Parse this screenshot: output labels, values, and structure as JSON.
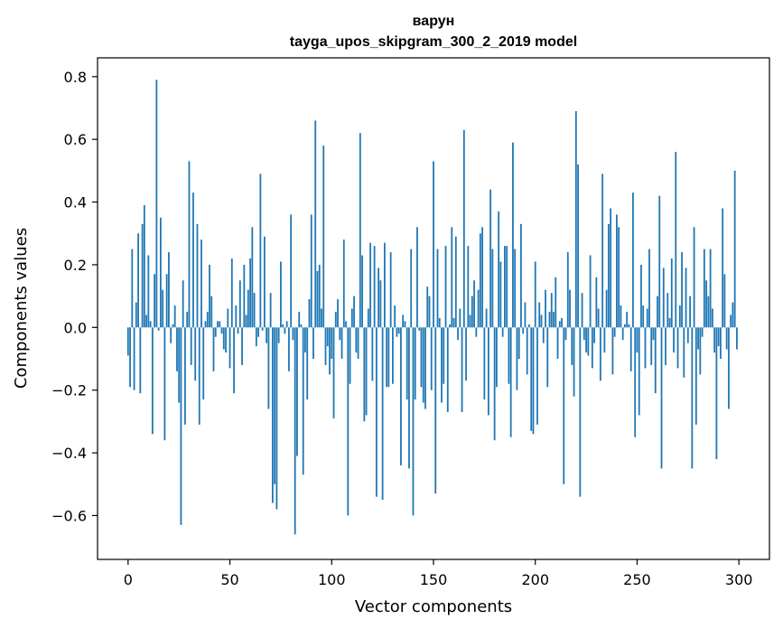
{
  "chart_data": {
    "type": "bar",
    "title": "варун",
    "subtitle": "tayga_upos_skipgram_300_2_2019 model",
    "xlabel": "Vector components",
    "ylabel": "Components values",
    "xlim": [
      -15,
      315
    ],
    "ylim": [
      -0.74,
      0.86
    ],
    "xticks": [
      0,
      50,
      100,
      150,
      200,
      250,
      300
    ],
    "yticks": [
      -0.6,
      -0.4,
      -0.2,
      0.0,
      0.2,
      0.4,
      0.6,
      0.8
    ],
    "ytick_labels": [
      "−0.6",
      "−0.4",
      "−0.2",
      "0.0",
      "0.2",
      "0.4",
      "0.6",
      "0.8"
    ],
    "grid": false,
    "bar_color": "#1f77b4",
    "values": [
      -0.09,
      -0.19,
      0.25,
      -0.2,
      0.08,
      0.3,
      -0.21,
      0.33,
      0.39,
      0.04,
      0.23,
      0.02,
      -0.34,
      0.17,
      0.79,
      -0.01,
      0.35,
      0.12,
      -0.36,
      0.17,
      0.24,
      -0.05,
      0.01,
      0.07,
      -0.14,
      -0.24,
      -0.63,
      0.15,
      -0.31,
      0.05,
      0.53,
      -0.12,
      0.43,
      -0.17,
      0.33,
      -0.31,
      0.28,
      -0.23,
      0.02,
      0.05,
      0.2,
      0.1,
      -0.14,
      -0.03,
      0.02,
      0.02,
      -0.02,
      -0.07,
      -0.08,
      0.06,
      -0.13,
      0.22,
      -0.21,
      0.07,
      -0.02,
      0.15,
      -0.12,
      0.2,
      0.04,
      0.12,
      0.22,
      0.32,
      0.11,
      -0.06,
      -0.03,
      0.49,
      -0.01,
      0.29,
      -0.05,
      -0.26,
      0.11,
      -0.56,
      -0.5,
      -0.58,
      -0.05,
      0.21,
      0.01,
      -0.02,
      0.02,
      -0.14,
      0.36,
      -0.04,
      -0.66,
      -0.41,
      0.05,
      0.01,
      -0.47,
      -0.08,
      -0.23,
      0.09,
      0.36,
      -0.1,
      0.66,
      0.18,
      0.2,
      0.06,
      0.58,
      -0.12,
      -0.06,
      -0.15,
      -0.1,
      -0.29,
      0.05,
      0.09,
      -0.04,
      -0.1,
      0.28,
      0.02,
      -0.6,
      -0.18,
      0.06,
      0.1,
      -0.08,
      -0.1,
      0.62,
      0.23,
      -0.3,
      -0.28,
      0.06,
      0.27,
      -0.17,
      0.26,
      -0.54,
      0.19,
      0.15,
      -0.55,
      0.27,
      -0.19,
      -0.19,
      0.24,
      -0.18,
      0.07,
      -0.03,
      -0.02,
      -0.44,
      0.04,
      0.02,
      -0.23,
      -0.45,
      0.25,
      -0.6,
      -0.23,
      0.32,
      -0.01,
      -0.19,
      -0.24,
      -0.26,
      0.13,
      0.1,
      -0.2,
      0.53,
      -0.53,
      0.25,
      0.03,
      -0.24,
      -0.18,
      0.26,
      -0.27,
      0.01,
      0.32,
      0.03,
      0.29,
      -0.04,
      0.06,
      -0.27,
      0.63,
      -0.17,
      0.26,
      0.04,
      0.1,
      0.15,
      -0.03,
      0.12,
      0.3,
      0.32,
      -0.23,
      0.06,
      -0.28,
      0.44,
      0.25,
      -0.36,
      -0.19,
      0.37,
      0.21,
      -0.03,
      0.26,
      0.26,
      -0.18,
      -0.35,
      0.59,
      0.25,
      -0.2,
      -0.1,
      0.33,
      -0.02,
      0.08,
      -0.15,
      0.01,
      -0.33,
      -0.34,
      0.21,
      -0.31,
      0.08,
      0.04,
      -0.05,
      0.12,
      -0.19,
      0.05,
      0.11,
      0.05,
      0.16,
      -0.1,
      0.02,
      0.03,
      -0.5,
      -0.04,
      0.24,
      0.12,
      -0.12,
      -0.22,
      0.69,
      0.52,
      -0.54,
      0.11,
      -0.04,
      -0.08,
      -0.09,
      0.23,
      -0.13,
      -0.05,
      0.16,
      0.06,
      -0.17,
      0.49,
      -0.08,
      0.12,
      0.33,
      0.38,
      -0.15,
      -0.03,
      0.36,
      0.32,
      0.07,
      -0.04,
      0.01,
      0.05,
      0.01,
      -0.14,
      0.43,
      -0.35,
      -0.08,
      -0.28,
      0.2,
      0.07,
      -0.13,
      0.06,
      0.25,
      -0.12,
      -0.04,
      -0.21,
      0.1,
      0.42,
      -0.45,
      0.19,
      -0.12,
      0.11,
      0.03,
      0.22,
      -0.08,
      0.56,
      -0.13,
      0.07,
      0.24,
      -0.16,
      0.19,
      -0.05,
      0.1,
      -0.45,
      0.32,
      -0.31,
      -0.07,
      -0.15,
      -0.03,
      0.25,
      0.15,
      0.1,
      0.25,
      0.06,
      -0.08,
      -0.42,
      -0.06,
      -0.1,
      0.38,
      0.17,
      -0.07,
      -0.26,
      0.04,
      0.08,
      0.5,
      -0.07
    ]
  }
}
